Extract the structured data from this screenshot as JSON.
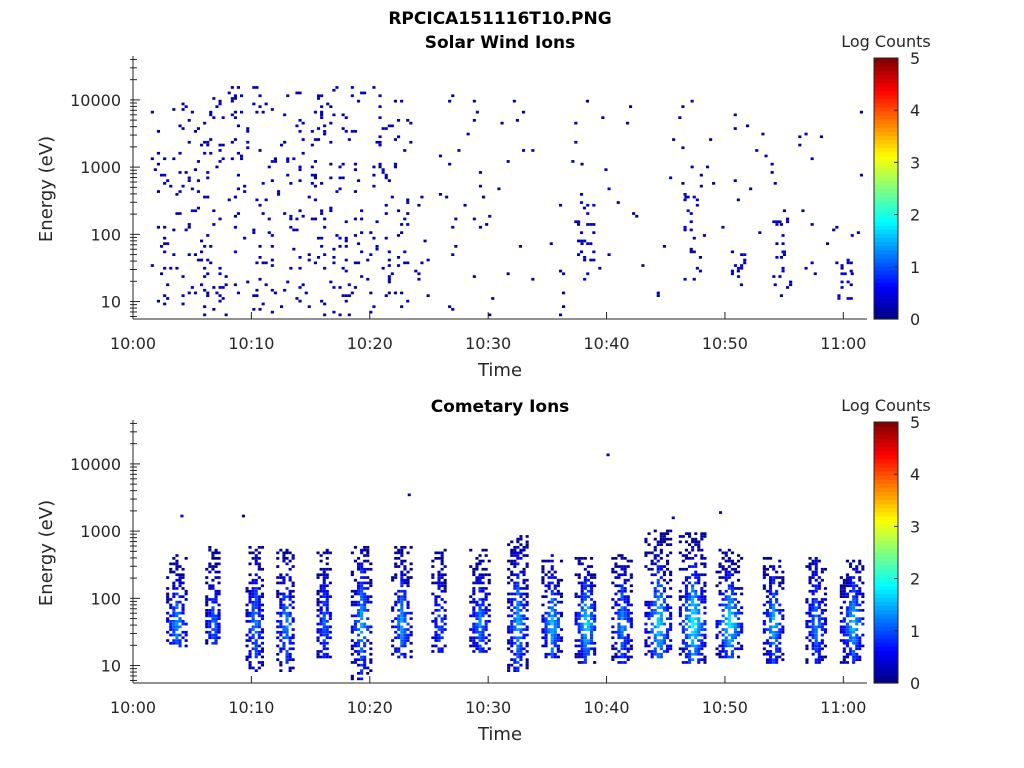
{
  "figure": {
    "suptitle": "RPCICA151116T10.PNG"
  },
  "colorbar": {
    "label": "Log Counts",
    "ticks": [
      "0",
      "1",
      "2",
      "3",
      "4",
      "5"
    ],
    "range": [
      0,
      5
    ],
    "colormap": "jet"
  },
  "colors": {
    "axis": "#262626",
    "background": "#ffffff"
  },
  "chart_data": [
    {
      "type": "heatmap",
      "title": "Solar Wind Ions",
      "xlabel": "Time",
      "ylabel": "Energy (eV)",
      "x_ticks": [
        "10:00",
        "10:10",
        "10:20",
        "10:30",
        "10:40",
        "10:50",
        "11:00"
      ],
      "x_range_min": [
        0,
        62
      ],
      "y_ticks": [
        "10",
        "100",
        "1000",
        "10000"
      ],
      "y_range": [
        5.5,
        45000
      ],
      "y_scale": "log",
      "colorbar_range": [
        0,
        5
      ],
      "description_of_data": "sparse isolated low-count (≈0–0.5 log counts) pixels; dense scatter 10:02–10:23 across 10–20000 eV, then intermittent vertical streaks below ~400 eV",
      "clusters": [
        {
          "t_start": 1.5,
          "t_end": 23.5,
          "e_low": 6,
          "e_high": 15000,
          "density": 0.16,
          "level": 0.15,
          "level_spread": 0.25
        },
        {
          "t_start": 23.5,
          "t_end": 38,
          "e_low": 6,
          "e_high": 12000,
          "density": 0.04,
          "level": 0.1,
          "level_spread": 0.2
        },
        {
          "t_start": 37.5,
          "t_end": 39,
          "e_low": 20,
          "e_high": 400,
          "density": 0.35,
          "level": 0.2,
          "level_spread": 0.3
        },
        {
          "t_start": 38,
          "t_end": 61.5,
          "e_low": 10,
          "e_high": 10000,
          "density": 0.03,
          "level": 0.1,
          "level_spread": 0.2
        },
        {
          "t_start": 46.5,
          "t_end": 48,
          "e_low": 20,
          "e_high": 400,
          "density": 0.3,
          "level": 0.2,
          "level_spread": 0.3
        },
        {
          "t_start": 50.5,
          "t_end": 52,
          "e_low": 20,
          "e_high": 60,
          "density": 0.5,
          "level": 0.25,
          "level_spread": 0.3
        },
        {
          "t_start": 54,
          "t_end": 55,
          "e_low": 20,
          "e_high": 150,
          "density": 0.4,
          "level": 0.2,
          "level_spread": 0.3
        },
        {
          "t_start": 59.5,
          "t_end": 61,
          "e_low": 10,
          "e_high": 40,
          "density": 0.4,
          "level": 0.2,
          "level_spread": 0.3
        }
      ]
    },
    {
      "type": "heatmap",
      "title": "Cometary Ions",
      "xlabel": "Time",
      "ylabel": "Energy (eV)",
      "x_ticks": [
        "10:00",
        "10:10",
        "10:20",
        "10:30",
        "10:40",
        "10:50",
        "11:00"
      ],
      "x_range_min": [
        0,
        62
      ],
      "y_ticks": [
        "10",
        "100",
        "1000",
        "10000"
      ],
      "y_range": [
        5.5,
        45000
      ],
      "y_scale": "log",
      "colorbar_range": [
        0,
        5
      ],
      "description_of_data": "periodic vertical bursts roughly every 3 minutes between ~8 and ~500 eV, peak intensity ≈1–1.8 log counts near 30–60 eV",
      "bursts": [
        {
          "t": 3.6,
          "width": 1.6,
          "e_low": 18,
          "e_high": 450,
          "peak": 1.3
        },
        {
          "t": 6.7,
          "width": 1.2,
          "e_low": 20,
          "e_high": 600,
          "peak": 1.1
        },
        {
          "t": 10.2,
          "width": 1.4,
          "e_low": 8,
          "e_high": 550,
          "peak": 1.2
        },
        {
          "t": 12.8,
          "width": 1.4,
          "e_low": 8,
          "e_high": 500,
          "peak": 1.3
        },
        {
          "t": 16.1,
          "width": 1.2,
          "e_low": 12,
          "e_high": 500,
          "peak": 1.1
        },
        {
          "t": 19.2,
          "width": 1.6,
          "e_low": 6,
          "e_high": 600,
          "peak": 1.4
        },
        {
          "t": 22.6,
          "width": 1.6,
          "e_low": 12,
          "e_high": 550,
          "peak": 1.3
        },
        {
          "t": 25.8,
          "width": 1.2,
          "e_low": 15,
          "e_high": 500,
          "peak": 1.0
        },
        {
          "t": 29.2,
          "width": 1.6,
          "e_low": 15,
          "e_high": 500,
          "peak": 1.2
        },
        {
          "t": 32.4,
          "width": 1.6,
          "e_low": 8,
          "e_high": 800,
          "peak": 1.4
        },
        {
          "t": 35.3,
          "width": 1.6,
          "e_low": 12,
          "e_high": 450,
          "peak": 1.5
        },
        {
          "t": 38.2,
          "width": 1.8,
          "e_low": 10,
          "e_high": 400,
          "peak": 1.7
        },
        {
          "t": 41.2,
          "width": 1.6,
          "e_low": 10,
          "e_high": 450,
          "peak": 1.3
        },
        {
          "t": 44.3,
          "width": 2.2,
          "e_low": 12,
          "e_high": 1000,
          "peak": 1.6
        },
        {
          "t": 47.2,
          "width": 2.2,
          "e_low": 10,
          "e_high": 900,
          "peak": 1.8
        },
        {
          "t": 50.3,
          "width": 2.2,
          "e_low": 12,
          "e_high": 500,
          "peak": 1.7
        },
        {
          "t": 54.0,
          "width": 1.6,
          "e_low": 10,
          "e_high": 400,
          "peak": 1.5
        },
        {
          "t": 57.6,
          "width": 1.6,
          "e_low": 10,
          "e_high": 400,
          "peak": 1.2
        },
        {
          "t": 60.7,
          "width": 2.0,
          "e_low": 10,
          "e_high": 350,
          "peak": 1.5
        }
      ],
      "outliers": [
        {
          "t": 40.0,
          "e": 13000,
          "level": 0.3
        },
        {
          "t": 23.2,
          "e": 3300,
          "level": 0.3
        },
        {
          "t": 4.0,
          "e": 1600,
          "level": 0.5
        },
        {
          "t": 9.2,
          "e": 1600,
          "level": 0.2
        },
        {
          "t": 45.5,
          "e": 1500,
          "level": 0.3
        },
        {
          "t": 49.5,
          "e": 1800,
          "level": 0.3
        }
      ]
    }
  ]
}
